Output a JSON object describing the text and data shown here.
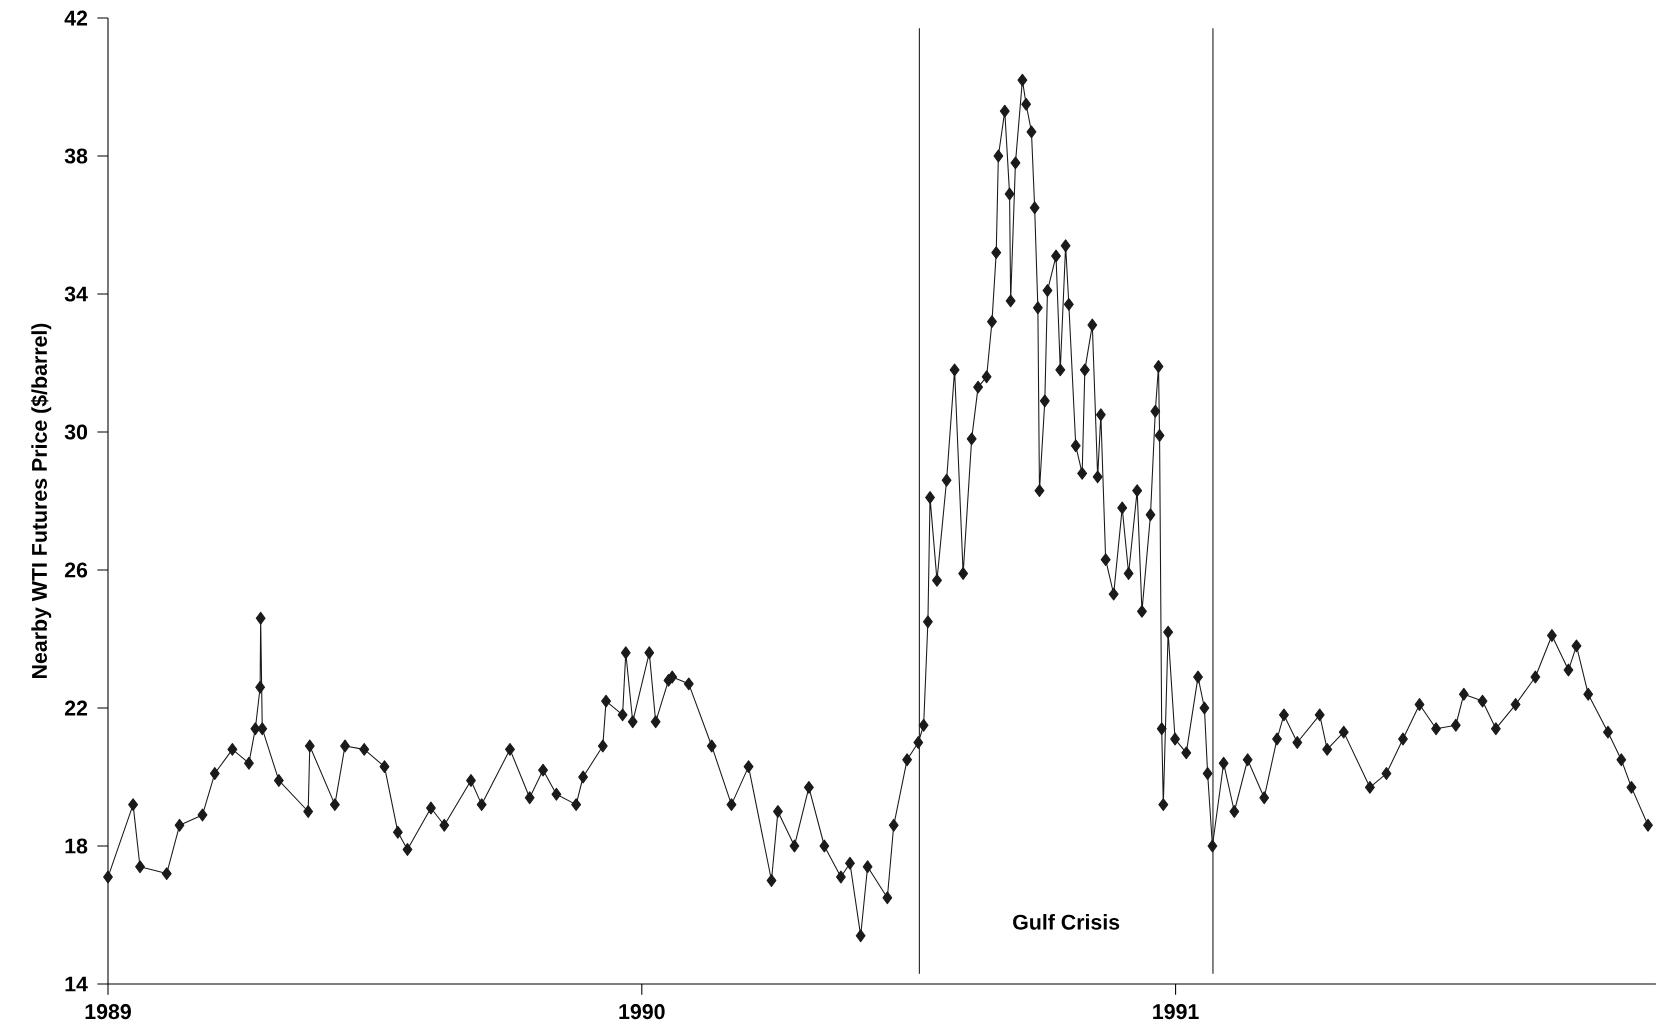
{
  "chart_data": {
    "type": "line",
    "ylabel": "Nearby WTI Futures Price ($/barrel)",
    "xlim": [
      1989,
      1991.9
    ],
    "xticks": [
      1989,
      1990,
      1991
    ],
    "ylim": [
      14,
      42
    ],
    "yticks": [
      14,
      18,
      22,
      26,
      30,
      34,
      38,
      42
    ],
    "marker": "diamond",
    "line_style": "solid",
    "ref_lines": [
      {
        "axis": "x",
        "value": 1990.52,
        "color": "#1a1a1a"
      },
      {
        "axis": "x",
        "value": 1991.07,
        "color": "#1a1a1a"
      }
    ],
    "annotations": [
      "Gulf Crisis"
    ],
    "series": [
      {
        "color": "#1a1a1a",
        "x": [
          1989.0,
          1989.047,
          1989.06,
          1989.11,
          1989.134,
          1989.177,
          1989.2,
          1989.233,
          1989.264,
          1989.276,
          1989.285,
          1989.286,
          1989.289,
          1989.32,
          1989.375,
          1989.378,
          1989.425,
          1989.444,
          1989.48,
          1989.518,
          1989.543,
          1989.561,
          1989.605,
          1989.63,
          1989.68,
          1989.7,
          1989.753,
          1989.79,
          1989.815,
          1989.84,
          1989.877,
          1989.89,
          1989.927,
          1989.933,
          1989.964,
          1989.97,
          1989.983,
          1990.014,
          1990.026,
          1990.05,
          1990.057,
          1990.088,
          1990.131,
          1990.168,
          1990.2,
          1990.243,
          1990.255,
          1990.286,
          1990.313,
          1990.342,
          1990.373,
          1990.39,
          1990.41,
          1990.423,
          1990.46,
          1990.472,
          1990.497,
          1990.518,
          1990.528,
          1990.536,
          1990.54,
          1990.553,
          1990.571,
          1990.586,
          1990.602,
          1990.618,
          1990.63,
          1990.646,
          1990.656,
          1990.664,
          1990.668,
          1990.68,
          1990.689,
          1990.691,
          1990.7,
          1990.713,
          1990.72,
          1990.73,
          1990.736,
          1990.742,
          1990.745,
          1990.755,
          1990.76,
          1990.776,
          1990.784,
          1990.794,
          1990.8,
          1990.813,
          1990.825,
          1990.83,
          1990.844,
          1990.854,
          1990.86,
          1990.869,
          1990.884,
          1990.9,
          1990.912,
          1990.928,
          1990.937,
          1990.953,
          1990.962,
          1990.968,
          1990.97,
          1990.974,
          1990.977,
          1990.986,
          1990.999,
          1991.02,
          1991.042,
          1991.054,
          1991.06,
          1991.069,
          1991.09,
          1991.11,
          1991.135,
          1991.166,
          1991.19,
          1991.203,
          1991.228,
          1991.27,
          1991.284,
          1991.315,
          1991.364,
          1991.395,
          1991.426,
          1991.457,
          1991.488,
          1991.525,
          1991.54,
          1991.575,
          1991.6,
          1991.637,
          1991.674,
          1991.705,
          1991.736,
          1991.751,
          1991.773,
          1991.81,
          1991.835,
          1991.854,
          1991.885
        ],
        "values": [
          17.1,
          19.2,
          17.4,
          17.2,
          18.6,
          18.9,
          20.1,
          20.8,
          20.4,
          21.4,
          22.6,
          24.6,
          21.4,
          19.9,
          19.0,
          20.9,
          19.2,
          20.9,
          20.8,
          20.3,
          18.4,
          17.9,
          19.1,
          18.6,
          19.9,
          19.2,
          20.8,
          19.4,
          20.2,
          19.5,
          19.2,
          20.0,
          20.9,
          22.2,
          21.8,
          23.6,
          21.6,
          23.6,
          21.6,
          22.8,
          22.9,
          22.7,
          20.9,
          19.2,
          20.3,
          17.0,
          19.0,
          18.0,
          19.7,
          18.0,
          17.1,
          17.5,
          15.4,
          17.4,
          16.5,
          18.6,
          20.5,
          21.0,
          21.5,
          24.5,
          28.1,
          25.7,
          28.6,
          31.8,
          25.9,
          29.8,
          31.3,
          31.6,
          33.2,
          35.2,
          38.0,
          39.3,
          36.9,
          33.8,
          37.8,
          40.2,
          39.5,
          38.7,
          36.5,
          33.6,
          28.3,
          30.9,
          34.1,
          35.1,
          31.8,
          35.4,
          33.7,
          29.6,
          28.8,
          31.8,
          33.1,
          28.7,
          30.5,
          26.3,
          25.3,
          27.8,
          25.9,
          28.3,
          24.8,
          27.6,
          30.6,
          31.9,
          29.9,
          21.4,
          19.2,
          24.2,
          21.1,
          20.7,
          22.9,
          22.0,
          20.1,
          18.0,
          20.4,
          19.0,
          20.5,
          19.4,
          21.1,
          21.8,
          21.0,
          21.8,
          20.8,
          21.3,
          19.7,
          20.1,
          21.1,
          22.1,
          21.4,
          21.5,
          22.4,
          22.2,
          21.4,
          22.1,
          22.9,
          24.1,
          23.1,
          23.8,
          22.4,
          21.3,
          20.5,
          19.7,
          18.6
        ]
      }
    ]
  }
}
